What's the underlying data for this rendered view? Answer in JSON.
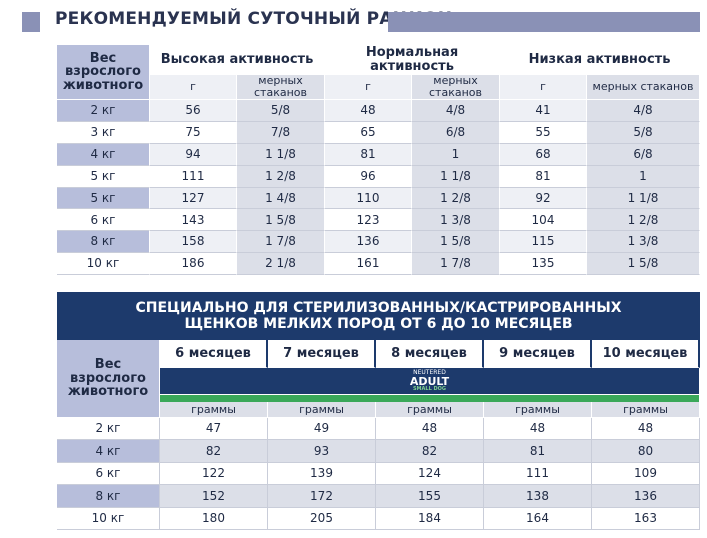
{
  "title": "РЕКОМЕНДУЕМЫЙ СУТОЧНЫЙ РАЦИОН",
  "table1": {
    "corner": "Вес взрослого животного",
    "groups": [
      "Высокая активность",
      "Нормальная активность",
      "Низкая активность"
    ],
    "subheaders": [
      "г",
      "мерных стаканов",
      "г",
      "мерных стаканов",
      "г",
      "мерных стаканов"
    ],
    "rows": [
      [
        "2 кг",
        56,
        "5/8",
        48,
        "4/8",
        41,
        "4/8"
      ],
      [
        "3 кг",
        75,
        "7/8",
        65,
        "6/8",
        55,
        "5/8"
      ],
      [
        "4 кг",
        94,
        "1 1/8",
        81,
        "1",
        68,
        "6/8"
      ],
      [
        "5 кг",
        111,
        "1 2/8",
        96,
        "1 1/8",
        81,
        "1"
      ],
      [
        "5 кг",
        127,
        "1 4/8",
        110,
        "1 2/8",
        92,
        "1 1/8"
      ],
      [
        "6 кг",
        143,
        "1 5/8",
        123,
        "1 3/8",
        104,
        "1 2/8"
      ],
      [
        "8 кг",
        158,
        "1 7/8",
        136,
        "1 5/8",
        115,
        "1 3/8"
      ],
      [
        "10 кг",
        186,
        "2 1/8",
        161,
        "1 7/8",
        135,
        "1 5/8"
      ]
    ]
  },
  "table2": {
    "title": "СПЕЦИАЛЬНО ДЛЯ СТЕРИЛИЗОВАННЫХ/КАСТРИРОВАННЫХ ЩЕНКОВ МЕЛКИХ ПОРОД ОТ 6 ДО 10 МЕСЯЦЕВ",
    "corner": "Вес взрослого животного",
    "columns": [
      "6 месяцев",
      "7 месяцев",
      "8 месяцев",
      "9 месяцев",
      "10 месяцев"
    ],
    "product": {
      "brand": "NEUTERED",
      "name": "ADULT",
      "variant": "SMALL DOG"
    },
    "units": [
      "граммы",
      "граммы",
      "граммы",
      "граммы",
      "граммы"
    ],
    "rows": [
      [
        "2 кг",
        47,
        49,
        48,
        48,
        48
      ],
      [
        "4 кг",
        82,
        93,
        82,
        81,
        80
      ],
      [
        "6 кг",
        122,
        139,
        124,
        111,
        109
      ],
      [
        "8 кг",
        152,
        172,
        155,
        138,
        136
      ],
      [
        "10 кг",
        180,
        205,
        184,
        164,
        163
      ]
    ]
  }
}
